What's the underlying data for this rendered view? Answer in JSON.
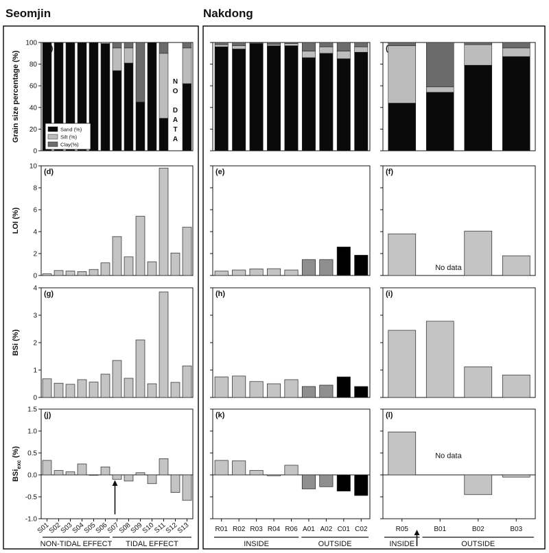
{
  "headers": {
    "left": "Seomjin",
    "right": "Nakdong"
  },
  "colors": {
    "sand": "#0a0a0a",
    "silt": "#bcbcbc",
    "clay": "#6b6b6b",
    "light": "#c4c4c4",
    "mid": "#8f8f8f",
    "dark": "#000000"
  },
  "rows": [
    {
      "ylabel": "Grain size percentage (%)",
      "ylim": [
        0,
        100
      ],
      "ticks": [
        "0",
        "20",
        "40",
        "60",
        "80",
        "100"
      ]
    },
    {
      "ylabel": "LOI (%)",
      "ylim": [
        0,
        10
      ],
      "ticks": [
        "0",
        "2",
        "4",
        "6",
        "8",
        "10"
      ]
    },
    {
      "ylabel": "BSi (%)",
      "ylim": [
        0,
        4
      ],
      "ticks": [
        "0",
        "1",
        "2",
        "3",
        "4"
      ]
    },
    {
      "ylabel": "BSi",
      "ylabel_sub": "exc",
      "ylabel_unit": " (%)",
      "ylim": [
        -1.0,
        1.5
      ],
      "ticks": [
        "-1.0",
        "-0.5",
        "0.0",
        "0.5",
        "1.0",
        "1.5"
      ]
    }
  ],
  "columns": [
    {
      "sites": [
        "S01",
        "S02",
        "S03",
        "S04",
        "S05",
        "S06",
        "S07",
        "S08",
        "S09",
        "S10",
        "S11",
        "S12",
        "S13"
      ],
      "groups": [
        {
          "label": "NON-TIDAL EFFECT",
          "from": 0,
          "to": 5
        },
        {
          "label": "TIDAL EFFECT",
          "from": 6,
          "to": 12
        }
      ]
    },
    {
      "sites": [
        "R01",
        "R02",
        "R03",
        "R04",
        "R06",
        "A01",
        "A02",
        "C01",
        "C02"
      ],
      "groups": [
        {
          "label": "INSIDE",
          "from": 0,
          "to": 4
        },
        {
          "label": "OUTSIDE",
          "from": 5,
          "to": 8
        }
      ]
    },
    {
      "sites": [
        "R05",
        "B01",
        "B02",
        "B03"
      ],
      "groups": [
        {
          "label": "INSIDE",
          "from": 0,
          "to": 0
        },
        {
          "label": "OUTSIDE",
          "from": 1,
          "to": 3
        }
      ]
    }
  ],
  "chart_data": [
    {
      "panel": "(a)",
      "type": "bar",
      "stacked": true,
      "categories": [
        "S01",
        "S02",
        "S03",
        "S04",
        "S05",
        "S06",
        "S07",
        "S08",
        "S09",
        "S10",
        "S11",
        "S12",
        "S13"
      ],
      "series": [
        {
          "name": "Sand (%)",
          "values": [
            100,
            100,
            100,
            100,
            100,
            99,
            74,
            81,
            45,
            100,
            30,
            null,
            62
          ]
        },
        {
          "name": "Silt (%)",
          "values": [
            0,
            0,
            0,
            0,
            0,
            1,
            21,
            14,
            0,
            0,
            60,
            null,
            33
          ]
        },
        {
          "name": "Clay(%)",
          "values": [
            0,
            0,
            0,
            0,
            0,
            0,
            5,
            5,
            55,
            0,
            10,
            null,
            5
          ]
        }
      ],
      "annotation": "NO DATA",
      "annotation_site": "S12",
      "legend": [
        "Sand (%)",
        "Silt (%)",
        "Clay(%)"
      ],
      "legend_position": "bottom-left"
    },
    {
      "panel": "(b)",
      "type": "bar",
      "stacked": true,
      "categories": [
        "R01",
        "R02",
        "R03",
        "R04",
        "R06",
        "A01",
        "A02",
        "C01",
        "C02"
      ],
      "series": [
        {
          "name": "Sand (%)",
          "values": [
            96,
            94,
            99,
            97,
            97,
            86,
            90,
            85,
            91
          ]
        },
        {
          "name": "Silt (%)",
          "values": [
            2,
            3,
            0.5,
            1.5,
            2,
            6,
            6,
            7,
            5
          ]
        },
        {
          "name": "Clay(%)",
          "values": [
            2,
            3,
            0.5,
            1.5,
            1,
            8,
            4,
            8,
            4
          ]
        }
      ]
    },
    {
      "panel": "(c)",
      "type": "bar",
      "stacked": true,
      "categories": [
        "R05",
        "B01",
        "B02",
        "B03"
      ],
      "series": [
        {
          "name": "Sand (%)",
          "values": [
            44,
            54,
            79,
            87
          ]
        },
        {
          "name": "Silt (%)",
          "values": [
            53,
            5,
            19,
            8
          ]
        },
        {
          "name": "Clay(%)",
          "values": [
            3,
            41,
            2,
            5
          ]
        }
      ]
    },
    {
      "panel": "(d)",
      "type": "bar",
      "categories": [
        "S01",
        "S02",
        "S03",
        "S04",
        "S05",
        "S06",
        "S07",
        "S08",
        "S09",
        "S10",
        "S11",
        "S12",
        "S13"
      ],
      "values": [
        0.15,
        0.45,
        0.4,
        0.35,
        0.55,
        1.15,
        3.55,
        1.7,
        5.4,
        1.25,
        9.8,
        2.05,
        4.4
      ]
    },
    {
      "panel": "(e)",
      "type": "bar",
      "categories": [
        "R01",
        "R02",
        "R03",
        "R04",
        "R06",
        "A01",
        "A02",
        "C01",
        "C02"
      ],
      "values": [
        0.4,
        0.5,
        0.6,
        0.62,
        0.5,
        1.45,
        1.45,
        2.6,
        1.85
      ]
    },
    {
      "panel": "(f)",
      "type": "bar",
      "categories": [
        "R05",
        "B01",
        "B02",
        "B03"
      ],
      "values": [
        3.8,
        null,
        4.05,
        1.8
      ],
      "annotation": "No data"
    },
    {
      "panel": "(g)",
      "type": "bar",
      "categories": [
        "S01",
        "S02",
        "S03",
        "S04",
        "S05",
        "S06",
        "S07",
        "S08",
        "S09",
        "S10",
        "S11",
        "S12",
        "S13"
      ],
      "values": [
        0.68,
        0.52,
        0.48,
        0.65,
        0.56,
        0.85,
        1.35,
        0.7,
        2.1,
        0.5,
        3.85,
        0.55,
        1.15
      ]
    },
    {
      "panel": "(h)",
      "type": "bar",
      "categories": [
        "R01",
        "R02",
        "R03",
        "R04",
        "R06",
        "A01",
        "A02",
        "C01",
        "C02"
      ],
      "values": [
        0.75,
        0.78,
        0.58,
        0.5,
        0.65,
        0.4,
        0.45,
        0.75,
        0.4
      ]
    },
    {
      "panel": "(i)",
      "type": "bar",
      "categories": [
        "R05",
        "B01",
        "B02",
        "B03"
      ],
      "values": [
        2.45,
        2.78,
        1.12,
        0.82
      ]
    },
    {
      "panel": "(j)",
      "type": "bar",
      "categories": [
        "S01",
        "S02",
        "S03",
        "S04",
        "S05",
        "S06",
        "S07",
        "S08",
        "S09",
        "S10",
        "S11",
        "S12",
        "S13"
      ],
      "values": [
        0.33,
        0.1,
        0.07,
        0.25,
        0.0,
        0.18,
        -0.1,
        -0.14,
        0.05,
        -0.2,
        0.37,
        -0.4,
        -0.58
      ],
      "arrow_site": "S07"
    },
    {
      "panel": "(k)",
      "type": "bar",
      "categories": [
        "R01",
        "R02",
        "R03",
        "R04",
        "R06",
        "A01",
        "A02",
        "C01",
        "C02"
      ],
      "values": [
        0.33,
        0.32,
        0.1,
        -0.02,
        0.22,
        -0.32,
        -0.27,
        -0.37,
        -0.47
      ]
    },
    {
      "panel": "(l)",
      "type": "bar",
      "categories": [
        "R05",
        "B01",
        "B02",
        "B03"
      ],
      "values": [
        0.98,
        null,
        -0.45,
        -0.05
      ],
      "annotation": "No data",
      "arrow_between": [
        "R05",
        "B01"
      ]
    }
  ]
}
